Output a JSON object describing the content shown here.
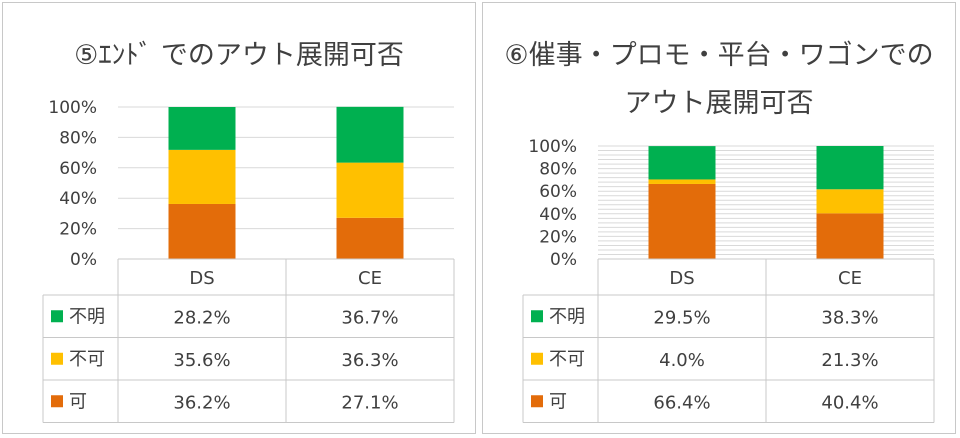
{
  "chart_data": [
    {
      "type": "bar",
      "stacked": true,
      "title": "⑤ｴﾝﾄﾞ でのアウト展開可否",
      "categories": [
        "DS",
        "CE"
      ],
      "series": [
        {
          "name": "可",
          "values": [
            36.2,
            27.1
          ],
          "labels": [
            "36.2%",
            "27.1%"
          ],
          "color": "#e36c0a"
        },
        {
          "name": "不可",
          "values": [
            35.6,
            36.3
          ],
          "labels": [
            "35.6%",
            "36.3%"
          ],
          "color": "#ffc000"
        },
        {
          "name": "不明",
          "values": [
            28.2,
            36.7
          ],
          "labels": [
            "28.2%",
            "36.7%"
          ],
          "color": "#00b050"
        }
      ],
      "y_ticks": [
        "0%",
        "20%",
        "40%",
        "60%",
        "80%",
        "100%"
      ],
      "ylim": [
        0,
        100
      ],
      "grid": true,
      "legend": "data-table"
    },
    {
      "type": "bar",
      "stacked": true,
      "title_lines": [
        "⑥催事・プロモ・平台・ワゴンでの",
        "アウト展開可否"
      ],
      "categories": [
        "DS",
        "CE"
      ],
      "series": [
        {
          "name": "可",
          "values": [
            66.4,
            40.4
          ],
          "labels": [
            "66.4%",
            "40.4%"
          ],
          "color": "#e36c0a"
        },
        {
          "name": "不可",
          "values": [
            4.0,
            21.3
          ],
          "labels": [
            "4.0%",
            "21.3%"
          ],
          "color": "#ffc000"
        },
        {
          "name": "不明",
          "values": [
            29.5,
            38.3
          ],
          "labels": [
            "29.5%",
            "38.3%"
          ],
          "color": "#00b050"
        }
      ],
      "y_ticks": [
        "0%",
        "20%",
        "40%",
        "60%",
        "80%",
        "100%"
      ],
      "ylim": [
        0,
        100
      ],
      "grid": true,
      "legend": "data-table"
    }
  ]
}
